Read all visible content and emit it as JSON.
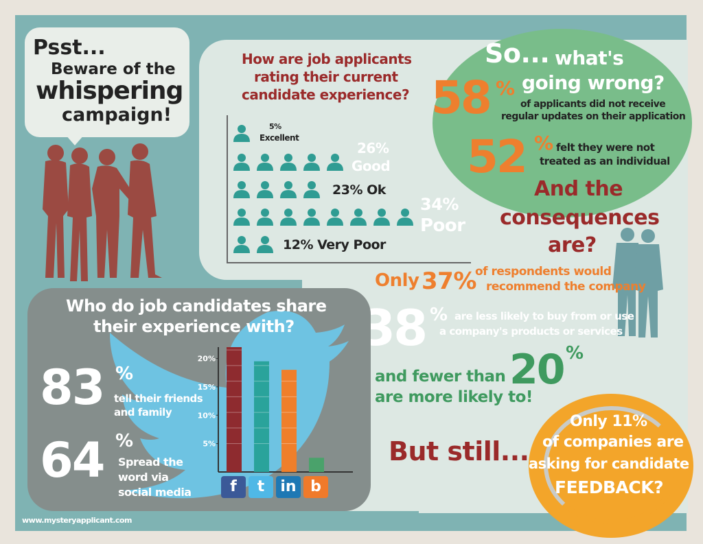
{
  "psst": {
    "line1": "Psst...",
    "line2": "Beware of the",
    "line3": "whispering",
    "line4": "campaign!"
  },
  "rating": {
    "title_line1": "How are job applicants",
    "title_line2": "rating their current",
    "title_line3": "candidate experience?",
    "rows": [
      {
        "pct": "5%",
        "label": "Excellent",
        "icons": 1
      },
      {
        "pct": "26%",
        "label": "Good",
        "icons": 5
      },
      {
        "pct": "23% Ok",
        "label": "",
        "icons": 4
      },
      {
        "pct": "34%",
        "label": "Poor",
        "icons": 8
      },
      {
        "pct": "12% Very Poor",
        "label": "",
        "icons": 2
      }
    ]
  },
  "wrong": {
    "line1_a": "So...",
    "line1_b": "what's",
    "line2": "going wrong?",
    "stat1_value": "58",
    "stat1_pct": "%",
    "stat1_text1": "of applicants did not receive",
    "stat1_text2": "regular updates on their application",
    "stat2_value": "52",
    "stat2_pct": "%",
    "stat2_text1": "felt they were not",
    "stat2_text2": "treated as an individual"
  },
  "consequences": {
    "line1": "And the",
    "line2": "consequences",
    "line3": "are?",
    "only": "Only",
    "stat3_value": "37%",
    "stat3_text1": "of respondents would",
    "stat3_text2": "recommend the company",
    "stat4_value": "38",
    "stat4_pct": "%",
    "stat4_text1": "are less likely to buy from or use",
    "stat4_text2": "a company's products or services",
    "fewer_line1": "and fewer than",
    "fewer_line2": "are more likely to!",
    "stat5_value": "20",
    "stat5_pct": "%"
  },
  "share": {
    "title_line1": "Who do job candidates share",
    "title_line2": "their experience with?",
    "stat1_value": "83",
    "stat1_pct": "%",
    "stat1_text1": "tell their friends",
    "stat1_text2": "and family",
    "stat2_value": "64",
    "stat2_pct": "%",
    "stat2_text1": "Spread the",
    "stat2_text2": "word via",
    "stat2_text3": "social media"
  },
  "chart_data": {
    "type": "bar",
    "categories": [
      "Facebook",
      "Twitter",
      "LinkedIn",
      "Blog"
    ],
    "values": [
      22,
      19.5,
      18,
      2.5
    ],
    "colors": [
      "#8e2b2f",
      "#2aa39b",
      "#ef7f2b",
      "#4aa26b"
    ],
    "ytick_labels": [
      "20%",
      "15%",
      "10%",
      "5%"
    ],
    "ytick_values": [
      20,
      15,
      10,
      5
    ],
    "ylim": [
      0,
      22
    ],
    "icons": [
      "f",
      "t",
      "in",
      "b"
    ]
  },
  "still": {
    "text": "But still..."
  },
  "feedback": {
    "line1": "Only 11%",
    "line2": "of companies are",
    "line3": "asking for candidate",
    "line4": "FEEDBACK?"
  },
  "footer": {
    "url": "www.mysteryapplicant.com"
  },
  "colors": {
    "background": "#7fb3b3",
    "red": "#9a2a2a",
    "orange": "#ee7f2e",
    "green": "#3f9a5f",
    "teal": "#2f9c93",
    "silhouette": "#9b4a42"
  }
}
